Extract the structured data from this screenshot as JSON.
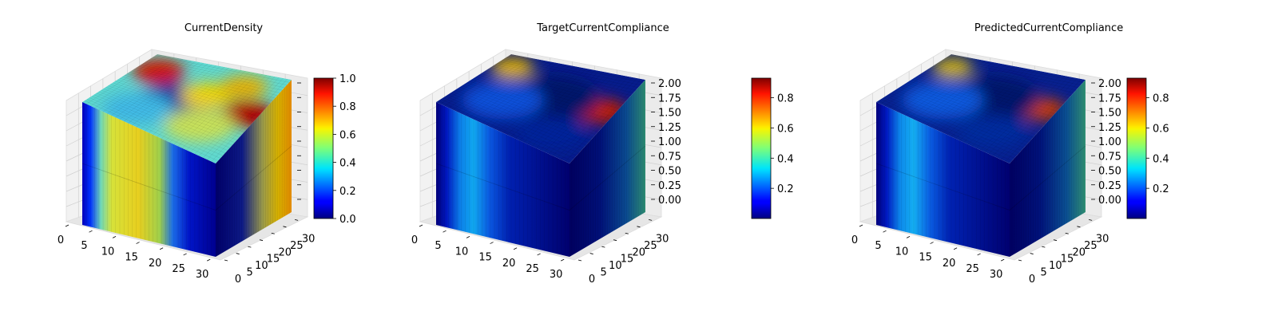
{
  "chart_data": [
    {
      "type": "voxel-3d",
      "title": "CurrentDensity",
      "colormap": "jet",
      "x_ticks": [
        "0",
        "5",
        "10",
        "15",
        "20",
        "25",
        "30"
      ],
      "y_ticks": [
        "0",
        "5",
        "10",
        "15",
        "20",
        "25",
        "30"
      ],
      "z_ticks": [],
      "xlim": [
        0,
        32
      ],
      "ylim": [
        0,
        32
      ],
      "zlim": [
        0,
        2
      ],
      "colorbar": {
        "min": 0.0,
        "max": 1.0,
        "ticks": [
          "0.0",
          "0.2",
          "0.4",
          "0.6",
          "0.8",
          "1.0"
        ]
      },
      "grid": true
    },
    {
      "type": "voxel-3d",
      "title": "TargetCurrentCompliance",
      "colormap": "jet",
      "x_ticks": [
        "0",
        "5",
        "10",
        "15",
        "20",
        "25",
        "30"
      ],
      "y_ticks": [
        "0",
        "5",
        "10",
        "15",
        "20",
        "25",
        "30"
      ],
      "z_ticks": [
        "0.00",
        "0.25",
        "0.50",
        "0.75",
        "1.00",
        "1.25",
        "1.50",
        "1.75",
        "2.00"
      ],
      "xlim": [
        0,
        32
      ],
      "ylim": [
        0,
        32
      ],
      "zlim": [
        0,
        2
      ],
      "colorbar": {
        "min": 0.0,
        "max": 0.93,
        "ticks": [
          "0.2",
          "0.4",
          "0.6",
          "0.8"
        ]
      },
      "grid": true
    },
    {
      "type": "voxel-3d",
      "title": "PredictedCurrentCompliance",
      "colormap": "jet",
      "x_ticks": [
        "0",
        "5",
        "10",
        "15",
        "20",
        "25",
        "30"
      ],
      "y_ticks": [
        "0",
        "5",
        "10",
        "15",
        "20",
        "25",
        "30"
      ],
      "z_ticks": [
        "0.00",
        "0.25",
        "0.50",
        "0.75",
        "1.00",
        "1.25",
        "1.50",
        "1.75",
        "2.00"
      ],
      "xlim": [
        0,
        32
      ],
      "ylim": [
        0,
        32
      ],
      "zlim": [
        0,
        2
      ],
      "colorbar": {
        "min": 0.0,
        "max": 0.93,
        "ticks": [
          "0.2",
          "0.4",
          "0.6",
          "0.8"
        ]
      },
      "grid": true
    }
  ]
}
